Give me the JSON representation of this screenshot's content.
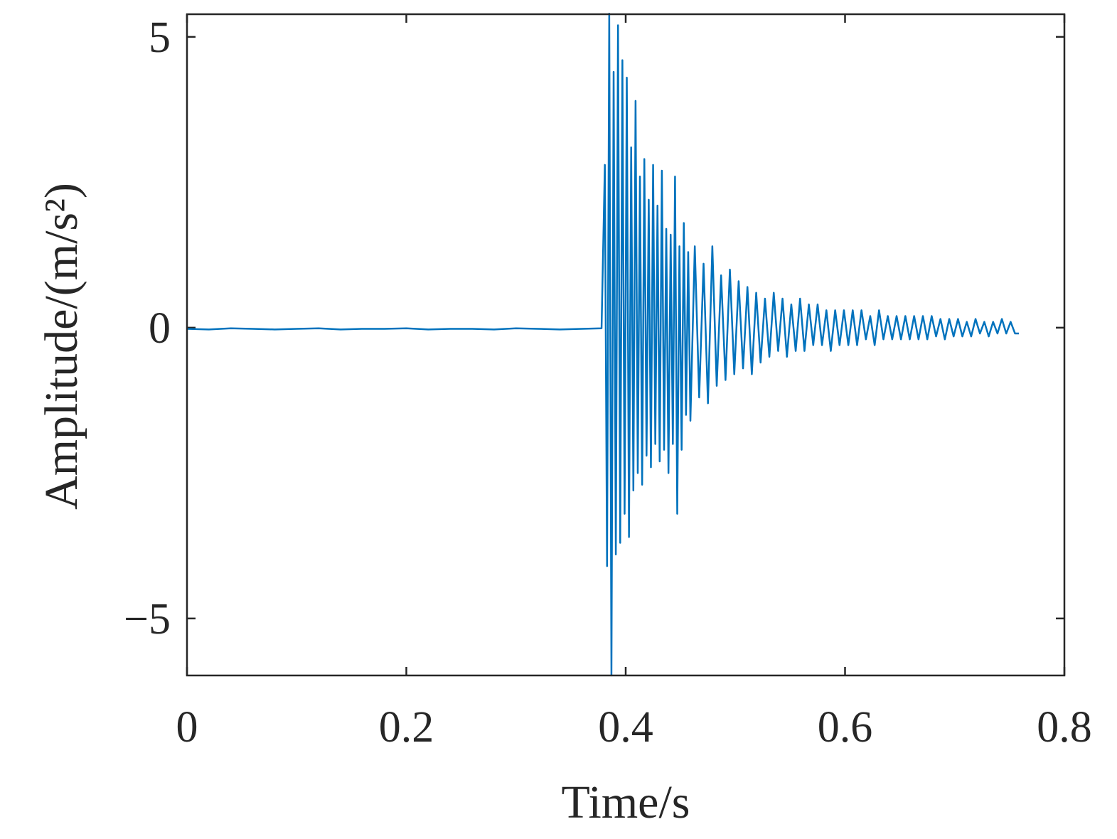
{
  "chart_data": {
    "type": "line",
    "xlabel": "Time/s",
    "ylabel": "Amplitude/(m/s²)",
    "color": "#0072bd",
    "xlim": [
      0,
      0.8
    ],
    "ylim": [
      -5.98,
      5.39
    ],
    "xticks": [
      0,
      0.2,
      0.4,
      0.6,
      0.8
    ],
    "yticks": [
      {
        "value": -5,
        "label": "−5"
      },
      0,
      5
    ],
    "x": [
      0,
      0.02,
      0.04,
      0.06,
      0.08,
      0.1,
      0.12,
      0.14,
      0.16,
      0.18,
      0.2,
      0.22,
      0.24,
      0.26,
      0.28,
      0.3,
      0.32,
      0.34,
      0.36,
      0.378,
      0.381,
      0.383,
      0.385,
      0.387,
      0.389,
      0.391,
      0.393,
      0.395,
      0.397,
      0.399,
      0.401,
      0.403,
      0.405,
      0.407,
      0.409,
      0.411,
      0.413,
      0.415,
      0.417,
      0.419,
      0.421,
      0.423,
      0.425,
      0.427,
      0.429,
      0.431,
      0.433,
      0.435,
      0.437,
      0.439,
      0.441,
      0.443,
      0.445,
      0.447,
      0.449,
      0.451,
      0.453,
      0.455,
      0.457,
      0.459,
      0.463,
      0.467,
      0.471,
      0.475,
      0.479,
      0.483,
      0.487,
      0.491,
      0.495,
      0.499,
      0.503,
      0.507,
      0.511,
      0.515,
      0.519,
      0.523,
      0.527,
      0.531,
      0.535,
      0.539,
      0.543,
      0.547,
      0.551,
      0.555,
      0.559,
      0.563,
      0.567,
      0.571,
      0.575,
      0.579,
      0.583,
      0.587,
      0.591,
      0.595,
      0.599,
      0.603,
      0.607,
      0.611,
      0.615,
      0.619,
      0.623,
      0.627,
      0.631,
      0.635,
      0.639,
      0.643,
      0.647,
      0.651,
      0.655,
      0.659,
      0.663,
      0.667,
      0.671,
      0.675,
      0.679,
      0.683,
      0.687,
      0.691,
      0.695,
      0.699,
      0.703,
      0.707,
      0.711,
      0.715,
      0.719,
      0.723,
      0.727,
      0.731,
      0.735,
      0.739,
      0.743,
      0.747,
      0.751,
      0.755,
      0.7585
    ],
    "values": [
      -0.02,
      -0.03,
      -0.01,
      -0.02,
      -0.03,
      -0.02,
      -0.01,
      -0.03,
      -0.02,
      -0.02,
      -0.01,
      -0.03,
      -0.02,
      -0.02,
      -0.03,
      -0.01,
      -0.02,
      -0.03,
      -0.02,
      -0.01,
      2.8,
      -4.1,
      5.4,
      -5.98,
      4.4,
      -3.9,
      5.2,
      -3.7,
      4.6,
      -3.2,
      4.3,
      -3.6,
      3.1,
      -2.8,
      3.9,
      -2.5,
      2.6,
      -2.7,
      2.9,
      -2.2,
      2.2,
      -2.4,
      2.8,
      -2.0,
      2.1,
      -2.3,
      2.7,
      -2.1,
      1.7,
      -2.5,
      1.6,
      -2.0,
      2.6,
      -3.2,
      1.4,
      -2.1,
      1.8,
      -1.5,
      1.3,
      -1.6,
      1.4,
      -1.2,
      1.1,
      -1.3,
      1.4,
      -1.0,
      0.9,
      -0.9,
      1.0,
      -0.8,
      0.8,
      -0.7,
      0.7,
      -0.8,
      0.6,
      -0.6,
      0.5,
      -0.5,
      0.6,
      -0.4,
      0.5,
      -0.5,
      0.4,
      -0.4,
      0.5,
      -0.4,
      0.4,
      -0.3,
      0.4,
      -0.3,
      0.3,
      -0.4,
      0.3,
      -0.3,
      0.3,
      -0.3,
      0.3,
      -0.3,
      0.3,
      -0.2,
      0.2,
      -0.3,
      0.3,
      -0.2,
      0.2,
      -0.2,
      0.2,
      -0.2,
      0.2,
      -0.2,
      0.2,
      -0.2,
      0.2,
      -0.2,
      0.2,
      -0.15,
      0.15,
      -0.2,
      0.15,
      -0.15,
      0.15,
      -0.15,
      0.1,
      -0.15,
      0.15,
      -0.1,
      0.1,
      -0.15,
      0.1,
      -0.1,
      0.15,
      -0.1,
      0.1,
      -0.1,
      -0.1
    ]
  }
}
